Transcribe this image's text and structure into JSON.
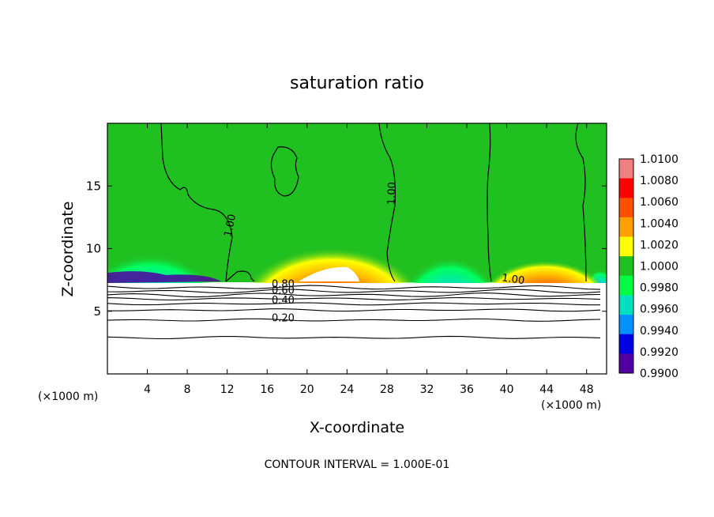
{
  "chart_data": {
    "type": "heatmap",
    "title": "saturation ratio",
    "xlabel": "X-coordinate",
    "ylabel": "Z-coordinate",
    "x_unit_left": "(×1000 m)",
    "x_unit_right": "(×1000 m)",
    "xlim": [
      0,
      50
    ],
    "ylim": [
      0,
      20
    ],
    "x_ticks": [
      4,
      8,
      12,
      16,
      20,
      24,
      28,
      32,
      36,
      40,
      44,
      48
    ],
    "y_ticks": [
      5,
      10,
      15
    ],
    "footer": "CONTOUR INTERVAL = 1.000E-01",
    "colorbar": {
      "levels": [
        "1.0100",
        "1.0080",
        "1.0060",
        "1.0040",
        "1.0020",
        "1.0000",
        "0.9980",
        "0.9960",
        "0.9940",
        "0.9920",
        "0.9900"
      ],
      "colors": [
        "#f08080",
        "#ff0000",
        "#ff5000",
        "#ffa000",
        "#ffff00",
        "#20c020",
        "#00ff40",
        "#00e0c0",
        "#0090ff",
        "#0000e0",
        "#5000a0"
      ]
    },
    "contour_labels": [
      {
        "text": "1.00",
        "x": 12.6,
        "z": 11.8,
        "rot": -78
      },
      {
        "text": "1.00",
        "x": 28.8,
        "z": 14.4,
        "rot": -88
      },
      {
        "text": "1.00",
        "x": 40.6,
        "z": 7.3,
        "rot": 8
      },
      {
        "text": "0.80",
        "x": 17.6,
        "z": 6.9,
        "rot": 0
      },
      {
        "text": "0.60",
        "x": 17.6,
        "z": 6.4,
        "rot": 0
      },
      {
        "text": "0.40",
        "x": 17.6,
        "z": 5.6,
        "rot": 0
      },
      {
        "text": "0.20",
        "x": 17.6,
        "z": 4.2,
        "rot": 0
      }
    ],
    "contour_lines": [
      {
        "level": 0.8,
        "z": 6.9
      },
      {
        "level": 0.7,
        "z": 6.6
      },
      {
        "level": 0.6,
        "z": 6.3
      },
      {
        "level": 0.5,
        "z": 6.0
      },
      {
        "level": 0.4,
        "z": 5.6
      },
      {
        "level": 0.3,
        "z": 5.1
      },
      {
        "level": 0.2,
        "z": 4.3
      },
      {
        "level": 0.1,
        "z": 2.9
      }
    ]
  }
}
